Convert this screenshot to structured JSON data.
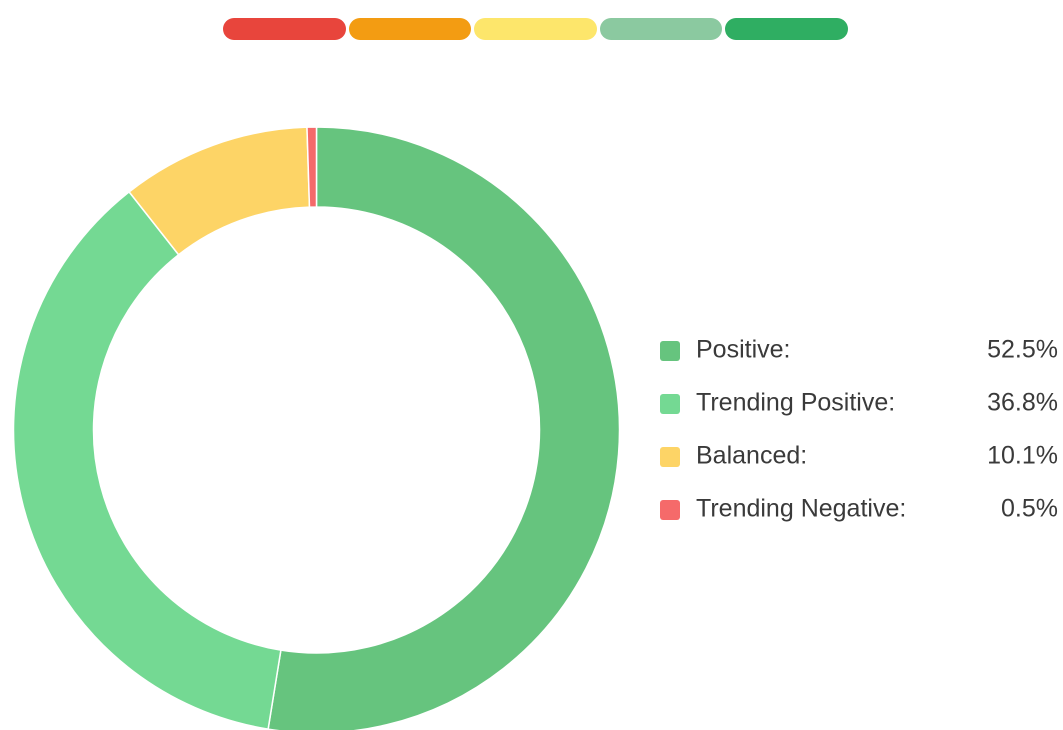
{
  "chart_data": {
    "type": "pie",
    "categories": [
      "Positive:",
      "Trending Positive:",
      "Balanced:",
      "Trending Negative:"
    ],
    "values": [
      52.5,
      36.8,
      10.1,
      0.5
    ],
    "value_labels": [
      "52.5%",
      "36.8%",
      "10.1%",
      "0.5%"
    ],
    "colors": [
      "#66c47e",
      "#74d993",
      "#fdd466",
      "#f56a6a"
    ],
    "donut": true,
    "legend": "right"
  }
}
